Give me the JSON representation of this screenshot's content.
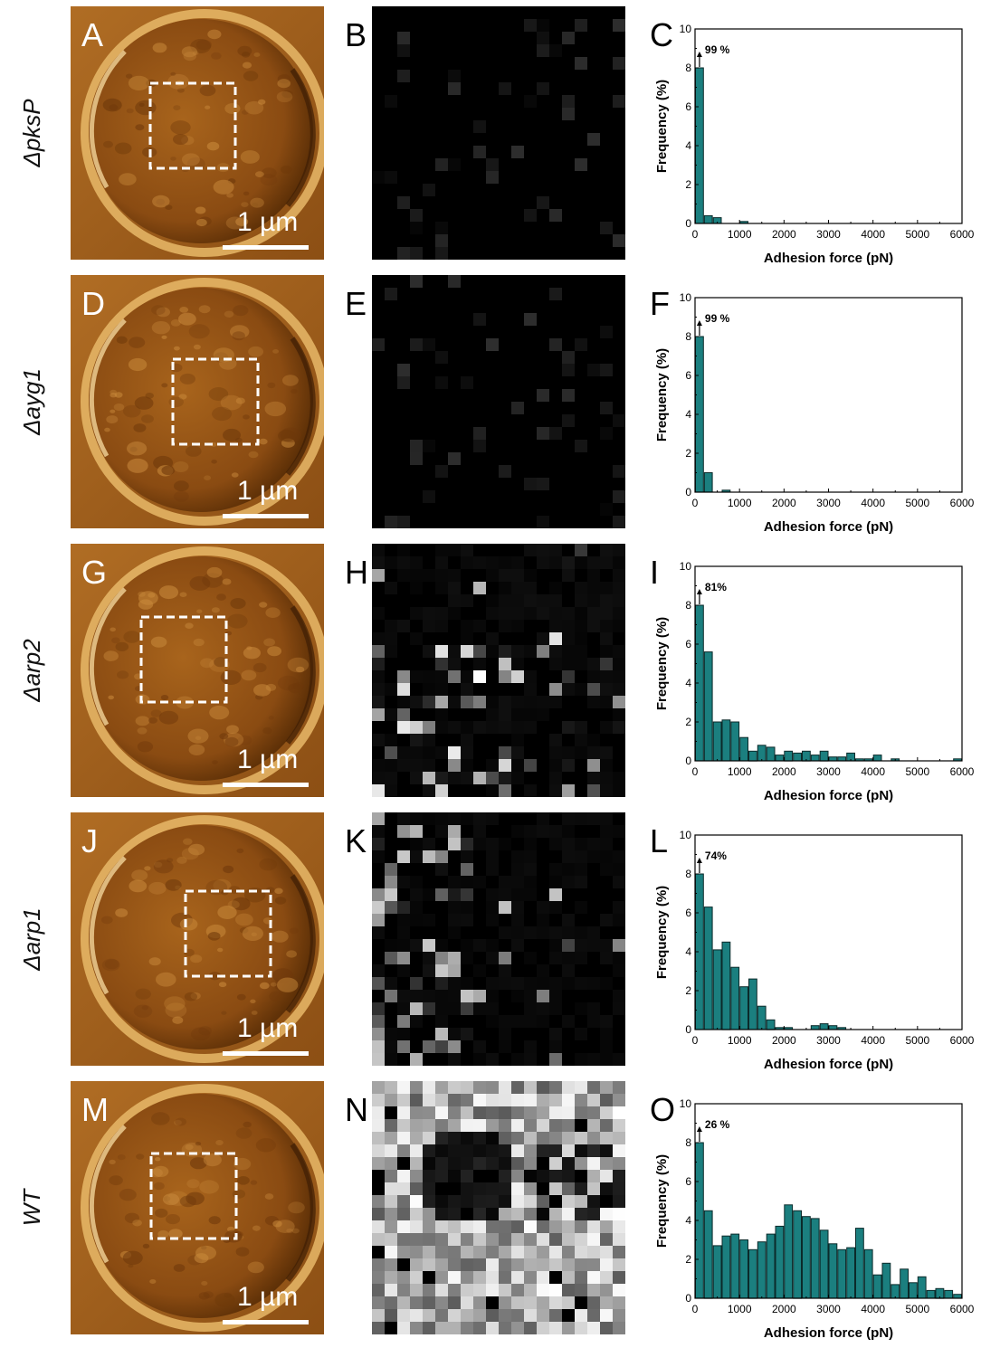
{
  "figure": {
    "colors": {
      "bar_fill": "#1b7f7f",
      "bar_stroke": "#0b2a2a",
      "afm_dark": "#5a2e06",
      "afm_mid": "#a8641c",
      "afm_light": "#e8b968"
    },
    "scale_bar_label": "1 µm",
    "rows": [
      {
        "strain": "ΔpksP",
        "letters": [
          "A",
          "B",
          "C"
        ],
        "heatmap_brightness": 0.03,
        "chart": {
          "type": "bar",
          "xlabel": "Adhesion force (pN)",
          "ylabel": "Frequency (%)",
          "xlim": [
            0,
            6000
          ],
          "ylim": [
            0,
            10
          ],
          "xticks": [
            "0",
            "1000",
            "2000",
            "3000",
            "4000",
            "5000",
            "6000"
          ],
          "yticks": [
            "0",
            "2",
            "4",
            "6",
            "8",
            "10"
          ],
          "annotation": "99 %",
          "bin_width": 200,
          "bins": [
            0,
            200,
            400,
            600,
            800,
            1000
          ],
          "values": [
            8,
            0.4,
            0.3,
            0,
            0,
            0.1
          ]
        }
      },
      {
        "strain": "Δayg1",
        "letters": [
          "D",
          "E",
          "F"
        ],
        "heatmap_brightness": 0.05,
        "chart": {
          "type": "bar",
          "xlabel": "Adhesion force (pN)",
          "ylabel": "Frequency (%)",
          "xlim": [
            0,
            6000
          ],
          "ylim": [
            0,
            10
          ],
          "xticks": [
            "0",
            "1000",
            "2000",
            "3000",
            "4000",
            "5000",
            "6000"
          ],
          "yticks": [
            "0",
            "2",
            "4",
            "6",
            "8",
            "10"
          ],
          "annotation": "99 %",
          "bin_width": 200,
          "bins": [
            0,
            200,
            400,
            600
          ],
          "values": [
            8,
            1.0,
            0,
            0.1
          ]
        }
      },
      {
        "strain": "Δarp2",
        "letters": [
          "G",
          "H",
          "I"
        ],
        "heatmap_brightness": 0.18,
        "chart": {
          "type": "bar",
          "xlabel": "Adhesion force (pN)",
          "ylabel": "Frequency (%)",
          "xlim": [
            0,
            6000
          ],
          "ylim": [
            0,
            10
          ],
          "xticks": [
            "0",
            "1000",
            "2000",
            "3000",
            "4000",
            "5000",
            "6000"
          ],
          "yticks": [
            "0",
            "2",
            "4",
            "6",
            "8",
            "10"
          ],
          "annotation": "81%",
          "bin_width": 200,
          "bins": [
            0,
            200,
            400,
            600,
            800,
            1000,
            1200,
            1400,
            1600,
            1800,
            2000,
            2200,
            2400,
            2600,
            2800,
            3000,
            3200,
            3400,
            3600,
            3800,
            4000,
            4200,
            4400,
            4600,
            4800,
            5000,
            5200,
            5400,
            5600,
            5800
          ],
          "values": [
            8,
            5.6,
            2.0,
            2.1,
            2.0,
            1.2,
            0.5,
            0.8,
            0.7,
            0.3,
            0.5,
            0.4,
            0.5,
            0.3,
            0.5,
            0.2,
            0.2,
            0.4,
            0.1,
            0.1,
            0.3,
            0,
            0.1,
            0,
            0,
            0,
            0,
            0,
            0,
            0.1
          ]
        }
      },
      {
        "strain": "Δarp1",
        "letters": [
          "J",
          "K",
          "L"
        ],
        "heatmap_brightness": 0.15,
        "chart": {
          "type": "bar",
          "xlabel": "Adhesion force (pN)",
          "ylabel": "Frequency (%)",
          "xlim": [
            0,
            6000
          ],
          "ylim": [
            0,
            10
          ],
          "xticks": [
            "0",
            "1000",
            "2000",
            "3000",
            "4000",
            "5000",
            "6000"
          ],
          "yticks": [
            "0",
            "2",
            "4",
            "6",
            "8",
            "10"
          ],
          "annotation": "74%",
          "bin_width": 200,
          "bins": [
            0,
            200,
            400,
            600,
            800,
            1000,
            1200,
            1400,
            1600,
            1800,
            2000,
            2200,
            2400,
            2600,
            2800,
            3000,
            3200
          ],
          "values": [
            8,
            6.3,
            4.1,
            4.5,
            3.2,
            2.2,
            2.6,
            1.2,
            0.5,
            0.1,
            0.1,
            0,
            0,
            0.2,
            0.3,
            0.2,
            0.1
          ]
        }
      },
      {
        "strain": "WT",
        "letters": [
          "M",
          "N",
          "O"
        ],
        "heatmap_brightness": 0.55,
        "chart": {
          "type": "bar",
          "xlabel": "Adhesion force (pN)",
          "ylabel": "Frequency (%)",
          "xlim": [
            0,
            6000
          ],
          "ylim": [
            0,
            10
          ],
          "xticks": [
            "0",
            "1000",
            "2000",
            "3000",
            "4000",
            "5000",
            "6000"
          ],
          "yticks": [
            "0",
            "2",
            "4",
            "6",
            "8",
            "10"
          ],
          "annotation": "26 %",
          "bin_width": 200,
          "bins": [
            0,
            200,
            400,
            600,
            800,
            1000,
            1200,
            1400,
            1600,
            1800,
            2000,
            2200,
            2400,
            2600,
            2800,
            3000,
            3200,
            3400,
            3600,
            3800,
            4000,
            4200,
            4400,
            4600,
            4800,
            5000,
            5200,
            5400,
            5600,
            5800
          ],
          "values": [
            8,
            4.5,
            2.7,
            3.2,
            3.3,
            3.0,
            2.5,
            2.9,
            3.3,
            3.7,
            4.8,
            4.5,
            4.2,
            4.1,
            3.5,
            2.8,
            2.5,
            2.6,
            3.6,
            2.5,
            1.2,
            1.8,
            0.7,
            1.5,
            0.8,
            1.1,
            0.4,
            0.5,
            0.4,
            0.2
          ]
        }
      }
    ]
  }
}
